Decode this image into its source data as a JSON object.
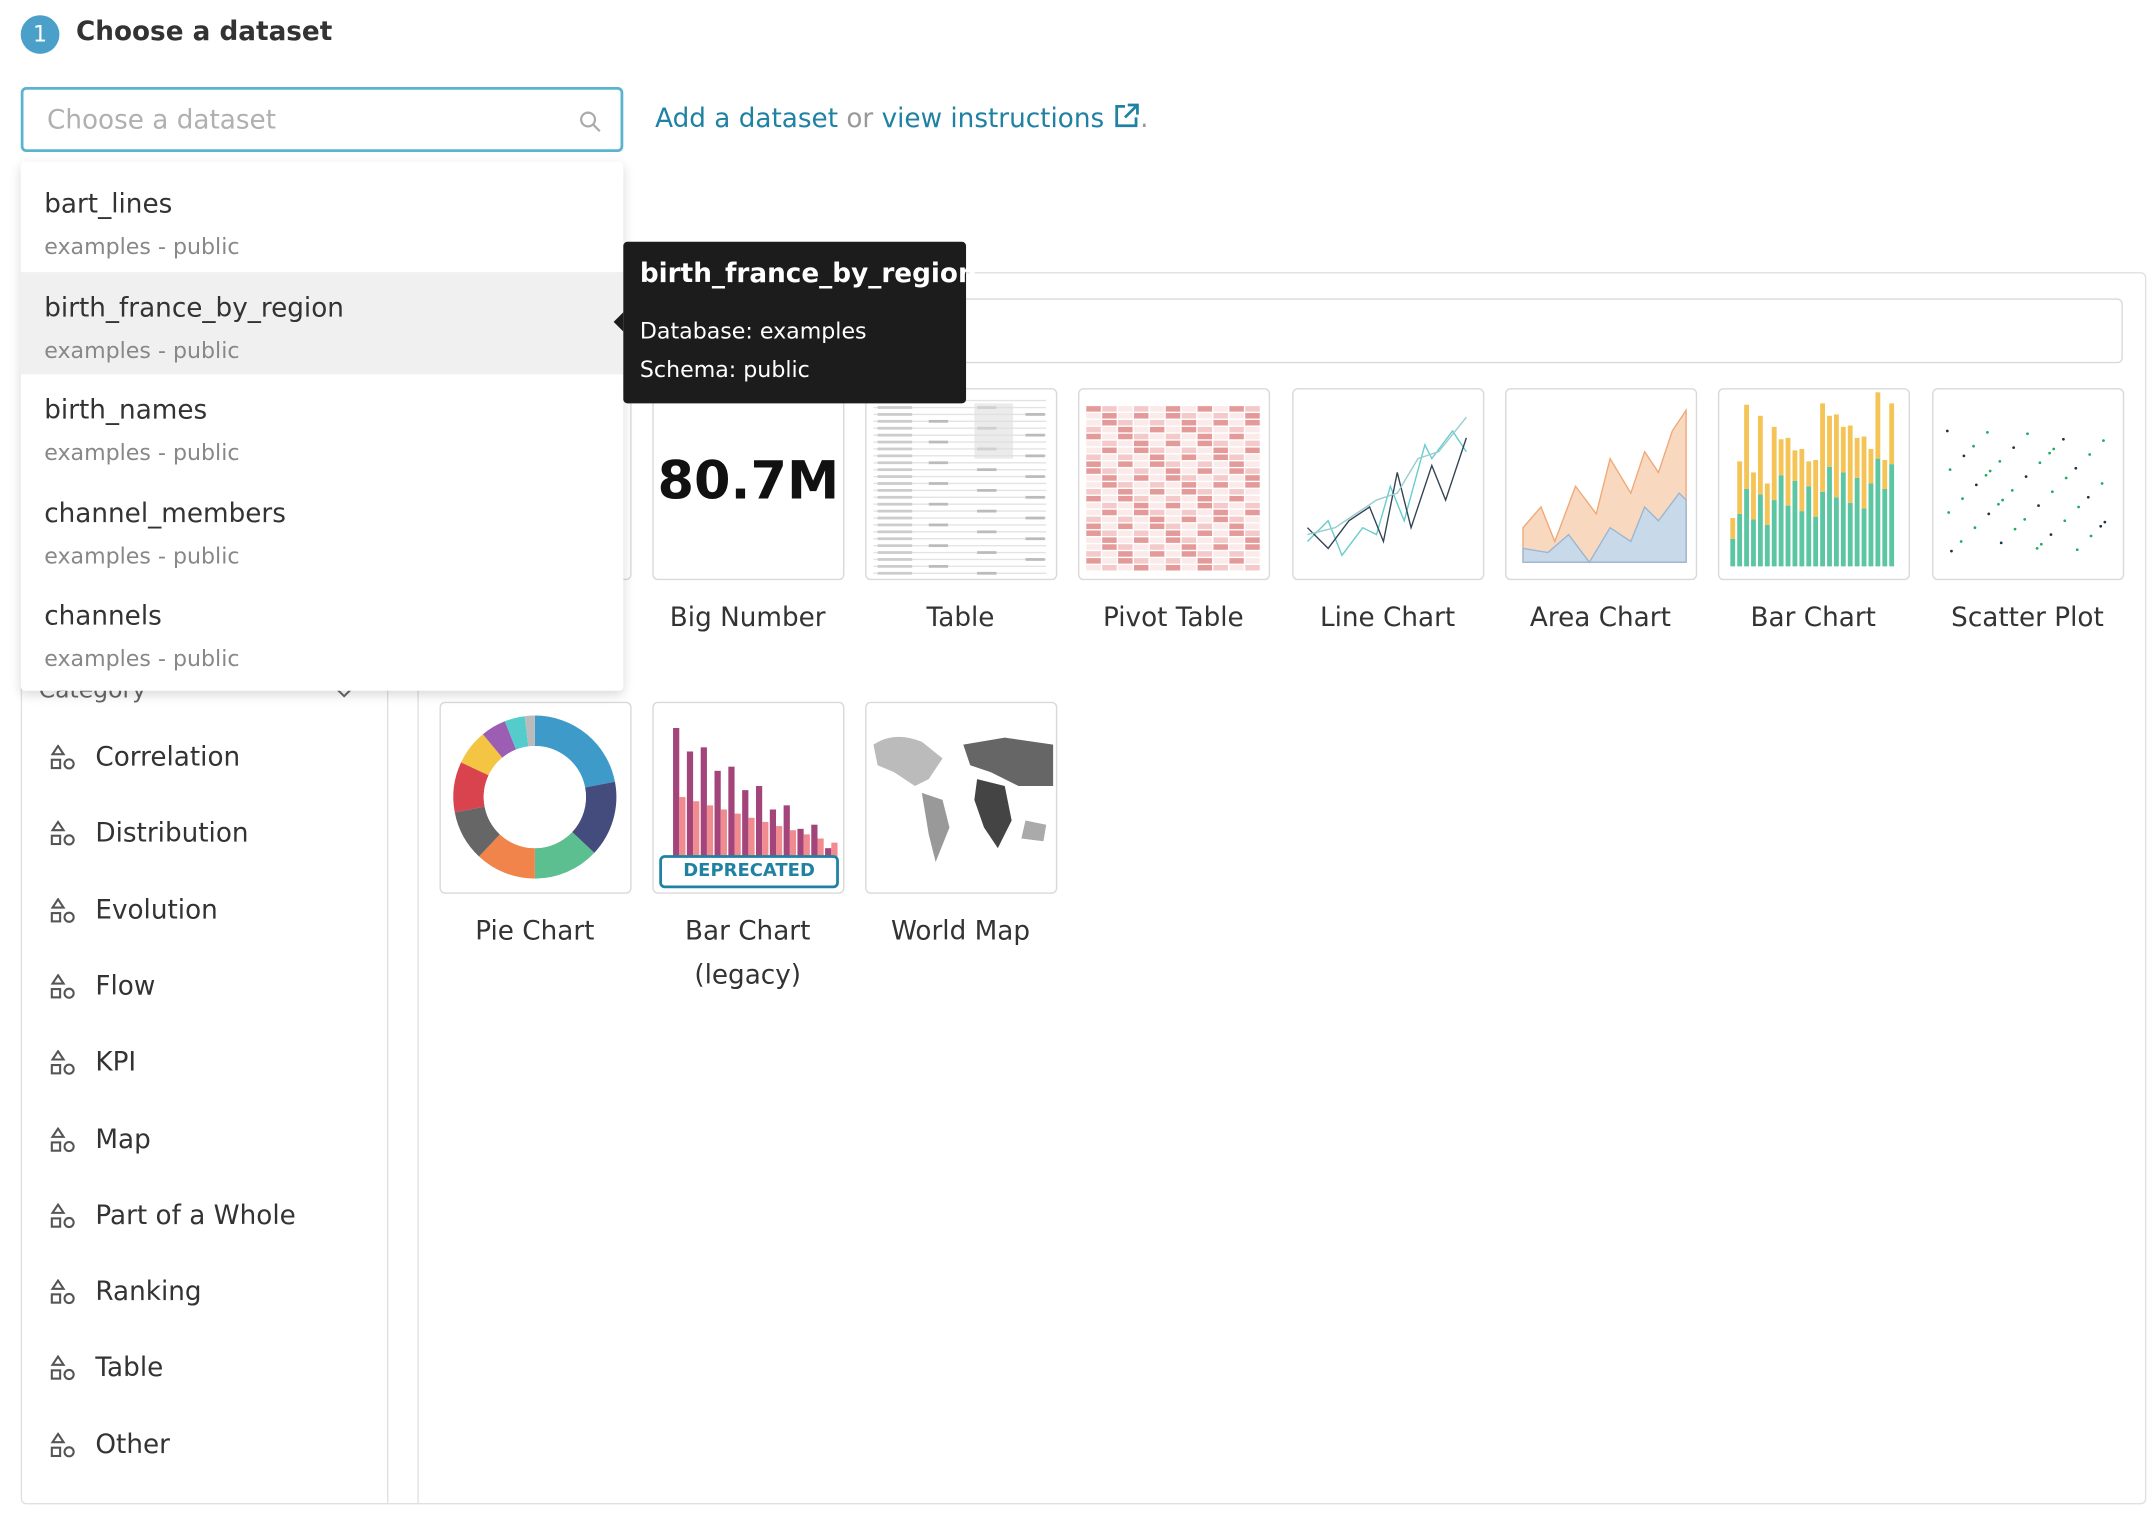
{
  "header": {
    "step": "1",
    "title": "Choose a dataset"
  },
  "search": {
    "placeholder": "Choose a dataset"
  },
  "links": {
    "add": "Add a dataset",
    "or": "or",
    "instructions": "view instructions",
    "period": "."
  },
  "dropdown": {
    "options": [
      {
        "name": "bart_lines",
        "subtitle": "examples - public"
      },
      {
        "name": "birth_france_by_region",
        "subtitle": "examples - public"
      },
      {
        "name": "birth_names",
        "subtitle": "examples - public"
      },
      {
        "name": "channel_members",
        "subtitle": "examples - public"
      },
      {
        "name": "channels",
        "subtitle": "examples - public"
      }
    ]
  },
  "tooltip": {
    "title": "birth_france_by_region",
    "database": "Database: examples",
    "schema": "Schema: public"
  },
  "sidebar": {
    "header": "Category",
    "items": [
      "Correlation",
      "Distribution",
      "Evolution",
      "Flow",
      "KPI",
      "Map",
      "Part of a Whole",
      "Ranking",
      "Table",
      "Other"
    ]
  },
  "cards": {
    "row1": [
      "Big Number",
      "Table",
      "Pivot Table",
      "Line Chart",
      "Area Chart",
      "Bar Chart",
      "Scatter Plot"
    ],
    "row2": [
      "Pie Chart",
      "Bar Chart (legacy)",
      "World Map"
    ],
    "big_number": "80.7M",
    "deprecated": "DEPRECATED"
  }
}
